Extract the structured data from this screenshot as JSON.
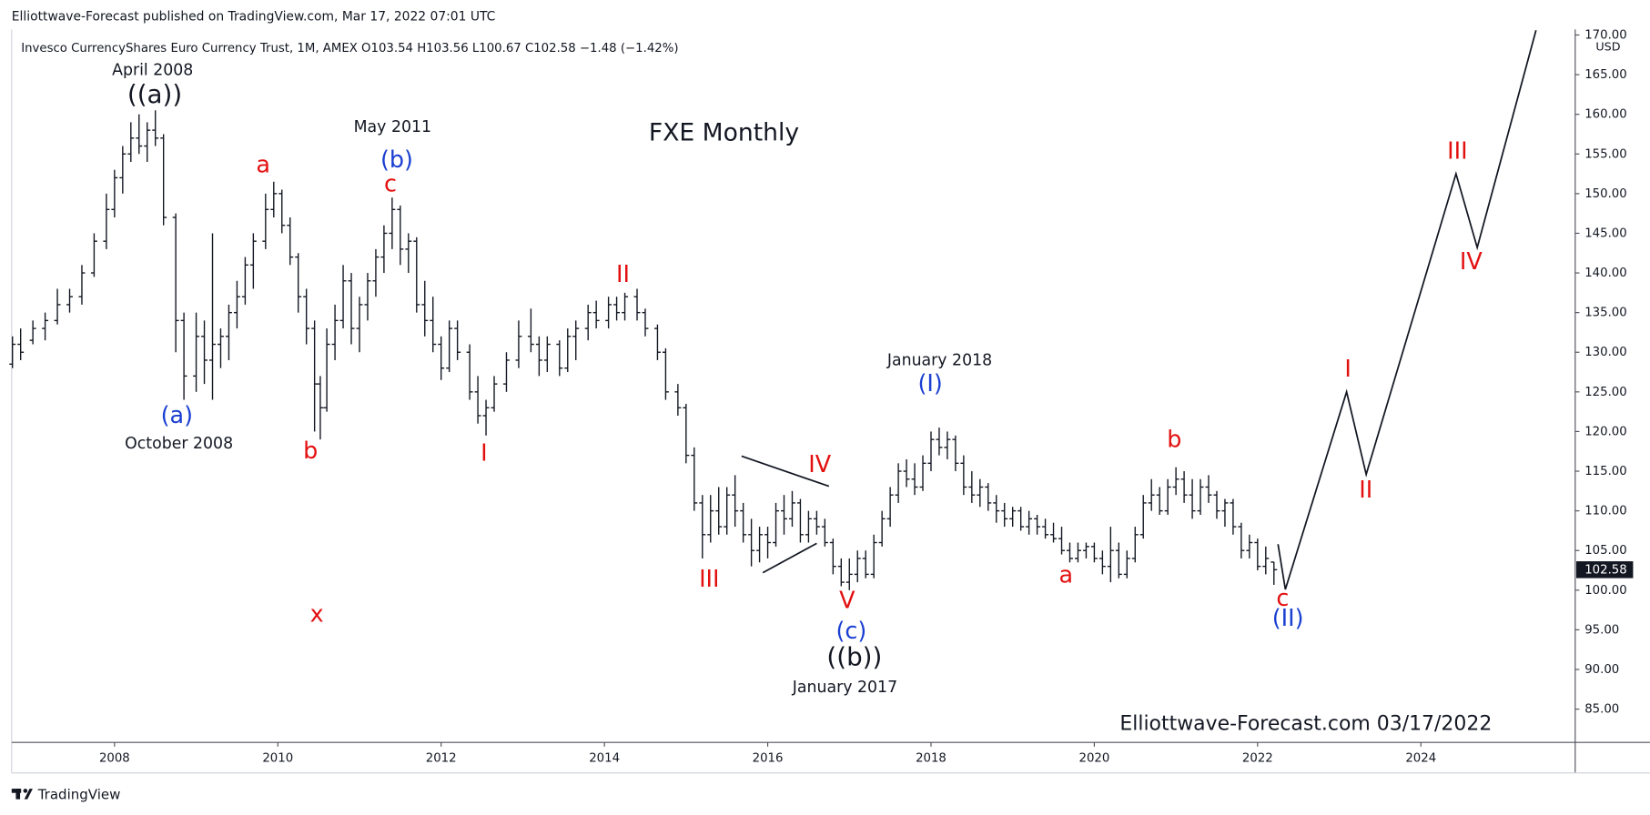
{
  "chart_data": {
    "type": "ohlc",
    "header": "Elliottwave-Forecast published on TradingView.com, Mar 17, 2022 07:01 UTC",
    "legend": "Invesco CurrencyShares Euro Currency Trust, 1M, AMEX  O103.54  H103.56  L100.67  C102.58  −1.48 (−1.42%)",
    "title": "FXE Monthly",
    "watermark": "Elliottwave-Forecast.com 03/17/2022",
    "footer": "TradingView",
    "currency": "USD",
    "last_price": 102.58,
    "color": "#131722",
    "grid": false,
    "xlim": [
      2006.74,
      2025.89
    ],
    "xticks": [
      2008,
      2010,
      2012,
      2014,
      2016,
      2018,
      2020,
      2022,
      2024
    ],
    "ylim": [
      80.8,
      170.7
    ],
    "yticks": [
      {
        "value": 85,
        "label": "85.00"
      },
      {
        "value": 90,
        "label": "90.00"
      },
      {
        "value": 95,
        "label": "95.00"
      },
      {
        "value": 100,
        "label": "100.00"
      },
      {
        "value": 105,
        "label": "105.00"
      },
      {
        "value": 110,
        "label": "110.00"
      },
      {
        "value": 115,
        "label": "115.00"
      },
      {
        "value": 120,
        "label": "120.00"
      },
      {
        "value": 125,
        "label": "125.00"
      },
      {
        "value": 130,
        "label": "130.00"
      },
      {
        "value": 135,
        "label": "135.00"
      },
      {
        "value": 140,
        "label": "140.00"
      },
      {
        "value": 145,
        "label": "145.00"
      },
      {
        "value": 150,
        "label": "150.00"
      },
      {
        "value": 155,
        "label": "155.00"
      },
      {
        "value": 160,
        "label": "160.00"
      },
      {
        "value": 165,
        "label": "165.00"
      },
      {
        "value": 170,
        "label": "170.00"
      }
    ],
    "x": [
      2006.75,
      2006.85,
      2007.0,
      2007.15,
      2007.3,
      2007.45,
      2007.6,
      2007.75,
      2007.9,
      2008.0,
      2008.1,
      2008.2,
      2008.3,
      2008.4,
      2008.5,
      2008.6,
      2008.75,
      2008.85,
      2009.0,
      2009.1,
      2009.2,
      2009.3,
      2009.4,
      2009.5,
      2009.6,
      2009.7,
      2009.85,
      2009.95,
      2010.05,
      2010.15,
      2010.25,
      2010.35,
      2010.45,
      2010.52,
      2010.6,
      2010.7,
      2010.8,
      2010.9,
      2011.0,
      2011.1,
      2011.2,
      2011.3,
      2011.4,
      2011.5,
      2011.6,
      2011.7,
      2011.8,
      2011.9,
      2012.0,
      2012.1,
      2012.2,
      2012.35,
      2012.45,
      2012.55,
      2012.65,
      2012.8,
      2012.95,
      2013.1,
      2013.2,
      2013.3,
      2013.45,
      2013.55,
      2013.65,
      2013.8,
      2013.9,
      2014.05,
      2014.15,
      2014.25,
      2014.4,
      2014.5,
      2014.65,
      2014.75,
      2014.9,
      2015.0,
      2015.1,
      2015.2,
      2015.3,
      2015.4,
      2015.5,
      2015.6,
      2015.7,
      2015.8,
      2015.9,
      2016.0,
      2016.1,
      2016.2,
      2016.3,
      2016.4,
      2016.5,
      2016.6,
      2016.7,
      2016.8,
      2016.9,
      2017.0,
      2017.1,
      2017.2,
      2017.3,
      2017.4,
      2017.5,
      2017.6,
      2017.7,
      2017.8,
      2017.9,
      2018.0,
      2018.1,
      2018.2,
      2018.3,
      2018.4,
      2018.5,
      2018.6,
      2018.7,
      2018.8,
      2018.9,
      2019.0,
      2019.1,
      2019.2,
      2019.3,
      2019.4,
      2019.5,
      2019.6,
      2019.7,
      2019.8,
      2019.9,
      2020.0,
      2020.1,
      2020.2,
      2020.3,
      2020.4,
      2020.5,
      2020.6,
      2020.7,
      2020.8,
      2020.9,
      2021.0,
      2021.1,
      2021.2,
      2021.3,
      2021.4,
      2021.5,
      2021.6,
      2021.7,
      2021.8,
      2021.9,
      2022.0,
      2022.1,
      2022.2
    ],
    "open": [
      128.5,
      131,
      131.5,
      133,
      134,
      136,
      137,
      140,
      144,
      148,
      152,
      155,
      157,
      156,
      158,
      157,
      147,
      134,
      127,
      132,
      129,
      131,
      132,
      135,
      137,
      141,
      144,
      148,
      150,
      146,
      142,
      137,
      133,
      126,
      123,
      131,
      134,
      139,
      133,
      136,
      139,
      142,
      145,
      148,
      143,
      144,
      136,
      134,
      131,
      128,
      133,
      130,
      125,
      122,
      123,
      126,
      129,
      132,
      131,
      129,
      131,
      128,
      132,
      133,
      135,
      134,
      136,
      135,
      137,
      135,
      133,
      130,
      125,
      123,
      117,
      111,
      107,
      110,
      108,
      112,
      110,
      107,
      105,
      107,
      106,
      110,
      109,
      111,
      107,
      109,
      108,
      106,
      103,
      101,
      102,
      104,
      102,
      106,
      109,
      112,
      115,
      114,
      113,
      116,
      119,
      118,
      119,
      116,
      113,
      112,
      113,
      111,
      110,
      109,
      110,
      108,
      109,
      108,
      107,
      106.5,
      105,
      104,
      105,
      105.5,
      104,
      103,
      105,
      102,
      104,
      107,
      111,
      112,
      110,
      113,
      114,
      112,
      110,
      113,
      112,
      110,
      111,
      108,
      105,
      106,
      103,
      103.54
    ],
    "high": [
      132,
      133,
      134,
      135,
      138,
      138,
      141,
      145,
      150,
      153,
      156,
      159,
      160,
      159,
      160.5,
      157.5,
      147.5,
      135,
      135,
      134,
      145,
      133,
      136,
      139,
      142,
      145,
      150,
      151.5,
      150.5,
      147,
      142.5,
      138,
      134,
      127,
      133,
      136,
      141,
      140,
      137,
      140,
      143,
      146,
      149.5,
      148.5,
      145,
      144.5,
      139,
      137,
      132,
      134,
      134,
      131,
      127,
      124,
      127,
      130,
      134,
      135.5,
      132,
      132,
      131.5,
      133,
      134,
      136,
      136.5,
      137,
      137,
      137.5,
      138,
      135.5,
      133.5,
      130.5,
      126,
      123.5,
      118,
      112,
      112,
      113,
      113,
      114.5,
      111,
      109,
      108,
      108,
      111,
      112,
      112.5,
      111.5,
      110,
      110,
      109,
      106.5,
      104,
      104,
      105,
      105,
      107,
      110,
      113,
      116,
      116.5,
      116,
      117,
      120,
      120.5,
      120,
      119.5,
      117,
      115,
      114,
      113.5,
      112,
      111,
      110.5,
      110.5,
      110,
      109.5,
      109,
      108.5,
      108,
      106,
      106,
      106,
      106,
      105,
      108,
      106,
      105,
      108,
      112,
      114,
      113,
      114,
      115.5,
      115,
      114,
      114,
      114.5,
      112.5,
      111.5,
      111.5,
      108.5,
      107,
      106.5,
      105.5,
      103.56
    ],
    "low": [
      128,
      129,
      131,
      131.5,
      133.5,
      135,
      136,
      139.5,
      143,
      147,
      150,
      154,
      155,
      154,
      156,
      146,
      130,
      124,
      125,
      126,
      124,
      128,
      129,
      133,
      136,
      138,
      143,
      147,
      145,
      141,
      135,
      131,
      120,
      119,
      122.5,
      129,
      133,
      131,
      130,
      134,
      137,
      140,
      143,
      141,
      140,
      135,
      132,
      130,
      126.5,
      127.5,
      129,
      124,
      121,
      119.5,
      122.5,
      125,
      128,
      130,
      127,
      127.5,
      127,
      127.5,
      129,
      131.5,
      133,
      133,
      134,
      134,
      134,
      132,
      129,
      124,
      122,
      116,
      110,
      104,
      106,
      107,
      107,
      108,
      106,
      103,
      103.5,
      104,
      105.5,
      107,
      108,
      106,
      106,
      107,
      105.5,
      102,
      100.5,
      100,
      101,
      101.5,
      101.5,
      105.5,
      108,
      111,
      113,
      112,
      112.5,
      115,
      117,
      116.5,
      115,
      112,
      111,
      110.5,
      110,
      108.5,
      108,
      108,
      107.5,
      107,
      107,
      106.5,
      106,
      104.5,
      103.5,
      103.5,
      104,
      103.5,
      102,
      101,
      101.5,
      101.5,
      103.5,
      106.5,
      110,
      109.5,
      109.5,
      112,
      111,
      109,
      109.5,
      111,
      109,
      108,
      107,
      104,
      104,
      102.5,
      102,
      100.67
    ],
    "close": [
      131,
      130,
      133,
      134,
      136,
      137,
      140,
      144,
      148,
      152,
      155,
      157,
      156,
      158,
      157,
      147,
      134,
      127,
      132,
      129,
      131,
      132,
      135,
      137,
      141,
      144,
      148,
      150,
      146,
      142,
      137,
      133,
      126,
      123,
      131,
      134,
      139,
      133,
      136,
      139,
      142,
      145,
      148,
      143,
      144,
      136,
      134,
      131,
      128,
      133,
      130,
      125,
      122,
      123,
      126,
      129,
      132,
      131,
      129,
      131,
      128,
      132,
      133,
      135,
      134,
      136,
      135,
      137,
      135,
      133,
      130,
      125,
      123,
      117,
      111,
      107,
      110,
      108,
      112,
      110,
      107,
      105,
      107,
      106,
      110,
      109,
      111,
      107,
      109,
      108,
      106,
      103,
      101,
      102,
      104,
      102,
      106,
      109,
      112,
      115,
      114,
      113,
      116,
      119,
      118,
      119,
      116,
      113,
      112,
      113,
      111,
      110,
      109,
      110,
      108,
      109,
      108,
      107,
      106.5,
      105,
      104,
      105,
      105.5,
      104,
      103,
      105,
      102,
      104,
      107,
      111,
      112,
      110,
      113,
      114,
      112,
      110,
      113,
      112,
      110,
      111,
      108,
      105,
      106,
      103,
      104,
      102.58
    ],
    "projection": {
      "x": [
        2022.25,
        2022.34,
        2023.09,
        2023.33,
        2024.43,
        2024.69,
        2025.41
      ],
      "y": [
        105.8,
        100.1,
        125.0,
        114.6,
        152.5,
        143.2,
        170.6
      ]
    },
    "triangle": [
      {
        "x": [
          2015.68,
          2016.75
        ],
        "y": [
          116.9,
          113.1
        ]
      },
      {
        "x": [
          2015.94,
          2016.6
        ],
        "y": [
          102.2,
          105.9
        ]
      }
    ],
    "annotations": [
      {
        "text": "April 2008",
        "color": "#131722"
      },
      {
        "text": "((a))",
        "color": "#131722"
      },
      {
        "text": "(a)",
        "color": "#1a3fd1"
      },
      {
        "text": "October 2008",
        "color": "#131722"
      },
      {
        "text": "a",
        "color": "#e31010"
      },
      {
        "text": "b",
        "color": "#e31010"
      },
      {
        "text": "x",
        "color": "#e31010"
      },
      {
        "text": "May 2011",
        "color": "#131722"
      },
      {
        "text": "(b)",
        "color": "#1a3fd1"
      },
      {
        "text": "c",
        "color": "#e31010"
      },
      {
        "text": "II",
        "color": "#e31010"
      },
      {
        "text": "I",
        "color": "#e31010"
      },
      {
        "text": "III",
        "color": "#e31010"
      },
      {
        "text": "IV",
        "color": "#e31010"
      },
      {
        "text": "V",
        "color": "#e31010"
      },
      {
        "text": "(c)",
        "color": "#1a3fd1"
      },
      {
        "text": "((b))",
        "color": "#131722"
      },
      {
        "text": "January 2017",
        "color": "#131722"
      },
      {
        "text": "January 2018",
        "color": "#131722"
      },
      {
        "text": "(I)",
        "color": "#1a3fd1"
      },
      {
        "text": "b",
        "color": "#e31010"
      },
      {
        "text": "a",
        "color": "#e31010"
      },
      {
        "text": "c",
        "color": "#e31010"
      },
      {
        "text": "(II)",
        "color": "#1a3fd1"
      },
      {
        "text": "I",
        "color": "#e31010"
      },
      {
        "text": "II",
        "color": "#e31010"
      },
      {
        "text": "III",
        "color": "#e31010"
      },
      {
        "text": "IV",
        "color": "#e31010"
      }
    ]
  }
}
